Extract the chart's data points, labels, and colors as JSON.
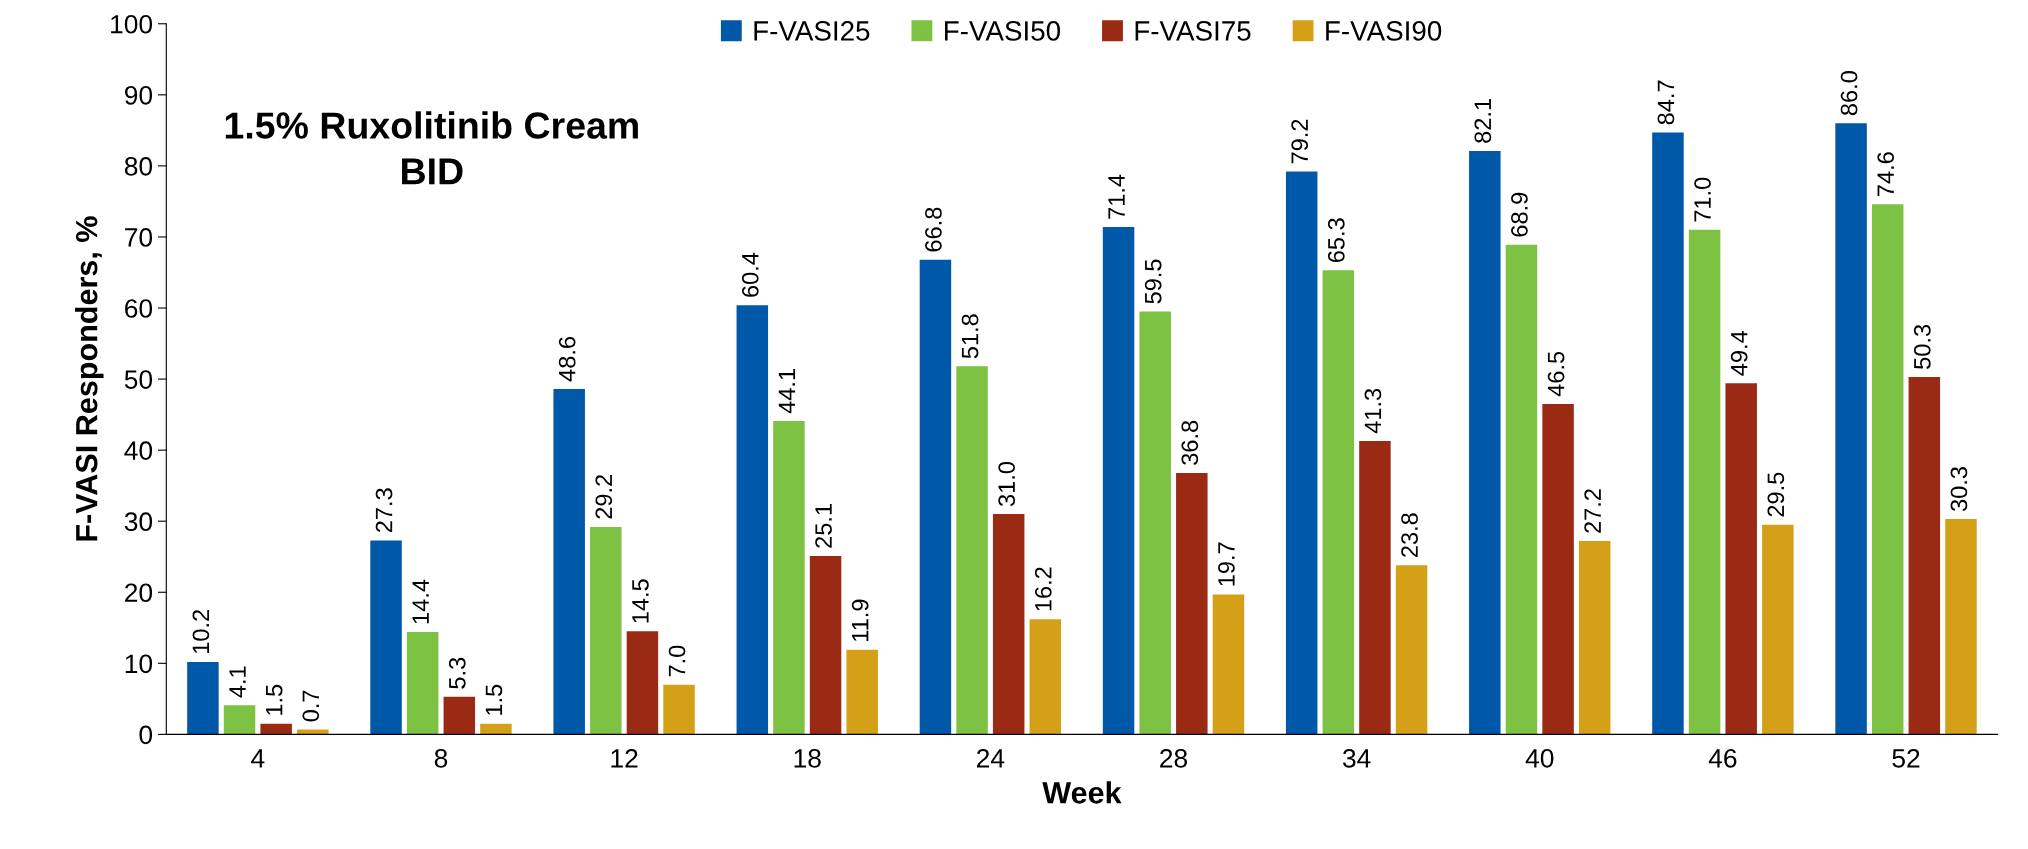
{
  "chart_data": {
    "type": "bar",
    "title": "1.5% Ruxolitinib Cream\nBID",
    "xlabel": "Week",
    "ylabel": "F-VASI Responders, %",
    "categories": [
      "4",
      "8",
      "12",
      "18",
      "24",
      "28",
      "34",
      "40",
      "46",
      "52"
    ],
    "series": [
      {
        "name": "F-VASI25",
        "color": "#0058a8",
        "values": [
          10.2,
          27.3,
          48.6,
          60.4,
          66.8,
          71.4,
          79.2,
          82.1,
          84.7,
          86.0
        ],
        "value_labels": [
          "10.2",
          "27.3",
          "48.6",
          "60.4",
          "66.8",
          "71.4",
          "79.2",
          "82.1",
          "84.7",
          "86.0"
        ]
      },
      {
        "name": "F-VASI50",
        "color": "#7dc242",
        "values": [
          4.1,
          14.4,
          29.2,
          44.1,
          51.8,
          59.5,
          65.3,
          68.9,
          71.0,
          74.6
        ],
        "value_labels": [
          "4.1",
          "14.4",
          "29.2",
          "44.1",
          "51.8",
          "59.5",
          "65.3",
          "68.9",
          "71.0",
          "74.6"
        ]
      },
      {
        "name": "F-VASI75",
        "color": "#9b2a15",
        "values": [
          1.5,
          5.3,
          14.5,
          25.1,
          31.0,
          36.8,
          41.3,
          46.5,
          49.4,
          50.3
        ],
        "value_labels": [
          "1.5",
          "5.3",
          "14.5",
          "25.1",
          "31.0",
          "36.8",
          "41.3",
          "46.5",
          "49.4",
          "50.3"
        ]
      },
      {
        "name": "F-VASI90",
        "color": "#d4a017",
        "values": [
          0.7,
          1.5,
          7.0,
          11.9,
          16.2,
          19.7,
          23.8,
          27.2,
          29.5,
          30.3
        ],
        "value_labels": [
          "0.7",
          "1.5",
          "7.0",
          "11.9",
          "16.2",
          "19.7",
          "23.8",
          "27.2",
          "29.5",
          "30.3"
        ]
      }
    ],
    "ylim": [
      0,
      100
    ],
    "yticks": [
      0,
      10,
      20,
      30,
      40,
      50,
      60,
      70,
      80,
      90,
      100
    ],
    "legend": "top",
    "grid": false
  }
}
